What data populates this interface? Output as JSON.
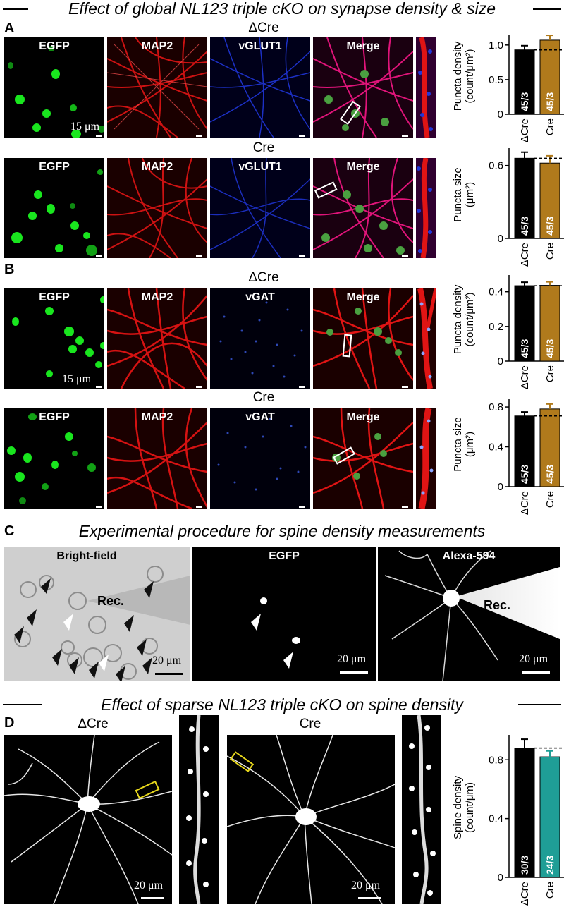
{
  "figure": {
    "title_top": "Effect of global NL123 triple cKO on synapse density & size",
    "title_c": "Experimental procedure for spine density measurements",
    "title_d": "Effect of sparse NL123 triple cKO on spine density"
  },
  "panel_a": {
    "letter": "A",
    "cond_1": "ΔCre",
    "cond_2": "Cre",
    "labels": [
      "EGFP",
      "MAP2",
      "vGLUT1",
      "Merge"
    ],
    "scale": "15 μm"
  },
  "panel_b": {
    "letter": "B",
    "cond_1": "ΔCre",
    "cond_2": "Cre",
    "labels": [
      "EGFP",
      "MAP2",
      "vGAT",
      "Merge"
    ],
    "scale": "15 μm"
  },
  "panel_c": {
    "letter": "C",
    "label_bf": "Bright-field",
    "label_egfp": "EGFP",
    "label_alexa": "Alexa-594",
    "rec": "Rec.",
    "scale": "20 μm"
  },
  "panel_d": {
    "letter": "D",
    "cond_1": "ΔCre",
    "cond_2": "Cre",
    "scale": "20 μm"
  },
  "colors": {
    "dcre_bar": "#000000",
    "cre_bar_ab": "#b07a1c",
    "cre_bar_d": "#1f9e96",
    "egfp": "#19e61e",
    "map2": "#e01414",
    "vglut": "#2036d8"
  },
  "chart_data": [
    {
      "type": "bar",
      "panel": "A-top",
      "categories": [
        "ΔCre",
        "Cre"
      ],
      "values": [
        0.93,
        1.07
      ],
      "errors": [
        0.06,
        0.07
      ],
      "n_labels": [
        "45/3",
        "45/3"
      ],
      "ylabel": "Puncta density (count/μm²)",
      "ylim": [
        0,
        1.1
      ],
      "yticks": [
        "0",
        "0.5",
        "1.0"
      ],
      "reference_line": 0.93
    },
    {
      "type": "bar",
      "panel": "A-bottom",
      "categories": [
        "ΔCre",
        "Cre"
      ],
      "values": [
        0.66,
        0.62
      ],
      "errors": [
        0.05,
        0.06
      ],
      "n_labels": [
        "45/3",
        "45/3"
      ],
      "ylabel": "Puncta size (μm²)",
      "ylim": [
        0,
        0.72
      ],
      "yticks": [
        "0",
        "0.6"
      ],
      "reference_line": 0.66
    },
    {
      "type": "bar",
      "panel": "B-top",
      "categories": [
        "ΔCre",
        "Cre"
      ],
      "values": [
        0.435,
        0.437
      ],
      "errors": [
        0.02,
        0.02
      ],
      "n_labels": [
        "45/3",
        "45/3"
      ],
      "ylabel": "Puncta density (count/μm²)",
      "ylim": [
        0,
        0.48
      ],
      "yticks": [
        "0",
        "0.2",
        "0.4"
      ],
      "reference_line": 0.435
    },
    {
      "type": "bar",
      "panel": "B-bottom",
      "categories": [
        "ΔCre",
        "Cre"
      ],
      "values": [
        0.71,
        0.78
      ],
      "errors": [
        0.04,
        0.05
      ],
      "n_labels": [
        "45/3",
        "45/3"
      ],
      "ylabel": "Puncta size (μm²)",
      "ylim": [
        0,
        0.85
      ],
      "yticks": [
        "0",
        "0.4",
        "0.8"
      ],
      "reference_line": 0.71
    },
    {
      "type": "bar",
      "panel": "D",
      "categories": [
        "ΔCre",
        "Cre"
      ],
      "values": [
        0.88,
        0.82
      ],
      "errors": [
        0.06,
        0.04
      ],
      "n_labels": [
        "30/3",
        "24/3"
      ],
      "ylabel": "Spine density (count/μm)",
      "ylim": [
        0,
        0.95
      ],
      "yticks": [
        "0",
        "0.4",
        "0.8"
      ],
      "reference_line": 0.88
    }
  ]
}
